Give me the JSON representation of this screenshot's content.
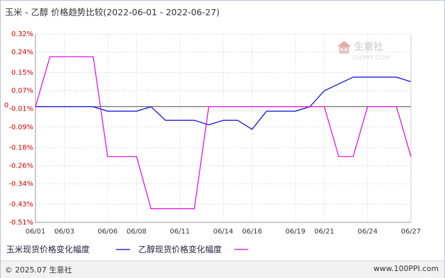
{
  "header": {
    "title": "玉米 - 乙醇 价格趋势比较(2022-06-01 - 2022-06-27)"
  },
  "watermark": {
    "brand": "生意社",
    "site": "100PPI.COM"
  },
  "footer": {
    "copyright": "© 2025.07 生意社",
    "site": "www.100PPI.com"
  },
  "colors": {
    "series_corn": "#0000cc",
    "series_ethanol": "#dd00dd",
    "axis_tick": "#cc0000",
    "grid": "#cfcfcf"
  },
  "chart_data": {
    "type": "line",
    "title": "玉米 - 乙醇 价格趋势比较(2022-06-01 - 2022-06-27)",
    "ylim": [
      -0.51,
      0.32
    ],
    "y_ticks": [
      "0.32%",
      "0.24%",
      "0.15%",
      "0.07%",
      "-0.01%",
      "-0.09%",
      "-0.18%",
      "-0.26%",
      "-0.34%",
      "-0.43%",
      "-0.51%"
    ],
    "y_tick_values": [
      0.32,
      0.24,
      0.15,
      0.07,
      -0.01,
      -0.09,
      -0.18,
      -0.26,
      -0.34,
      -0.43,
      -0.51
    ],
    "zero_marker": "0",
    "x_ticks": [
      "06/01",
      "06/03",
      "06/06",
      "06/08",
      "06/11",
      "06/14",
      "06/16",
      "06/19",
      "06/21",
      "06/24",
      "06/27"
    ],
    "x_tick_index": [
      0,
      2,
      5,
      7,
      10,
      13,
      15,
      18,
      20,
      23,
      26
    ],
    "x_count": 27,
    "legend_position": "bottom",
    "grid": true,
    "series": [
      {
        "name": "玉米现货价格变化幅度",
        "points": [
          [
            0,
            0.0
          ],
          [
            4,
            0.0
          ],
          [
            5,
            -0.02
          ],
          [
            7,
            -0.02
          ],
          [
            8,
            0.0
          ],
          [
            9,
            -0.06
          ],
          [
            11,
            -0.06
          ],
          [
            12,
            -0.08
          ],
          [
            13,
            -0.06
          ],
          [
            14,
            -0.06
          ],
          [
            15,
            -0.1
          ],
          [
            16,
            -0.02
          ],
          [
            18,
            -0.02
          ],
          [
            19,
            0.0
          ],
          [
            20,
            0.07
          ],
          [
            22,
            0.13
          ],
          [
            25,
            0.13
          ],
          [
            26,
            0.11
          ]
        ]
      },
      {
        "name": "乙醇现货价格变化幅度",
        "points": [
          [
            0,
            0.0
          ],
          [
            1,
            0.22
          ],
          [
            4,
            0.22
          ],
          [
            5,
            -0.22
          ],
          [
            7,
            -0.22
          ],
          [
            8,
            -0.45
          ],
          [
            11,
            -0.45
          ],
          [
            12,
            0.0
          ],
          [
            20,
            0.0
          ],
          [
            21,
            -0.22
          ],
          [
            22,
            -0.22
          ],
          [
            23,
            0.0
          ],
          [
            25,
            0.0
          ],
          [
            26,
            -0.22
          ]
        ]
      }
    ]
  }
}
